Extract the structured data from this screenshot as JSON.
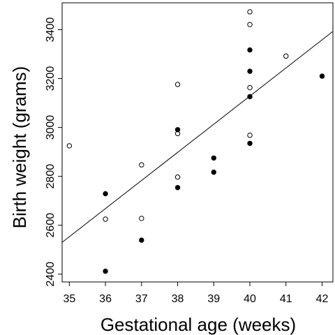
{
  "chart_data": {
    "type": "scatter",
    "title": "",
    "xlabel": "Gestational age (weeks)",
    "ylabel": "Birth weight (grams)",
    "xlim": [
      34.8,
      42.3
    ],
    "ylim": [
      2368,
      3510
    ],
    "x_ticks": [
      "35",
      "36",
      "37",
      "38",
      "39",
      "40",
      "41",
      "42"
    ],
    "y_ticks": [
      "2400",
      "2600",
      "2800",
      "3000",
      "3200",
      "3400"
    ],
    "grid": false,
    "legend": "none",
    "series": [
      {
        "marker": "open-circle",
        "points": [
          {
            "x": 35,
            "y": 2925
          },
          {
            "x": 36,
            "y": 2625
          },
          {
            "x": 37,
            "y": 2847
          },
          {
            "x": 37,
            "y": 2628
          },
          {
            "x": 38,
            "y": 3176
          },
          {
            "x": 38,
            "y": 2975
          },
          {
            "x": 38,
            "y": 2797
          },
          {
            "x": 40,
            "y": 3473
          },
          {
            "x": 40,
            "y": 3421
          },
          {
            "x": 40,
            "y": 3163
          },
          {
            "x": 40,
            "y": 2968
          },
          {
            "x": 41,
            "y": 3292
          }
        ]
      },
      {
        "marker": "filled-circle",
        "points": [
          {
            "x": 36,
            "y": 2729
          },
          {
            "x": 36,
            "y": 2412
          },
          {
            "x": 37,
            "y": 2539
          },
          {
            "x": 38,
            "y": 2991
          },
          {
            "x": 38,
            "y": 2754
          },
          {
            "x": 39,
            "y": 2875
          },
          {
            "x": 39,
            "y": 2817
          },
          {
            "x": 40,
            "y": 3317
          },
          {
            "x": 40,
            "y": 3230
          },
          {
            "x": 40,
            "y": 3126
          },
          {
            "x": 40,
            "y": 2935
          },
          {
            "x": 42,
            "y": 3210
          }
        ]
      }
    ],
    "fit_line": {
      "type": "linear",
      "points": [
        {
          "x": 34.8,
          "y": 2530
        },
        {
          "x": 42.3,
          "y": 3393
        }
      ]
    }
  }
}
